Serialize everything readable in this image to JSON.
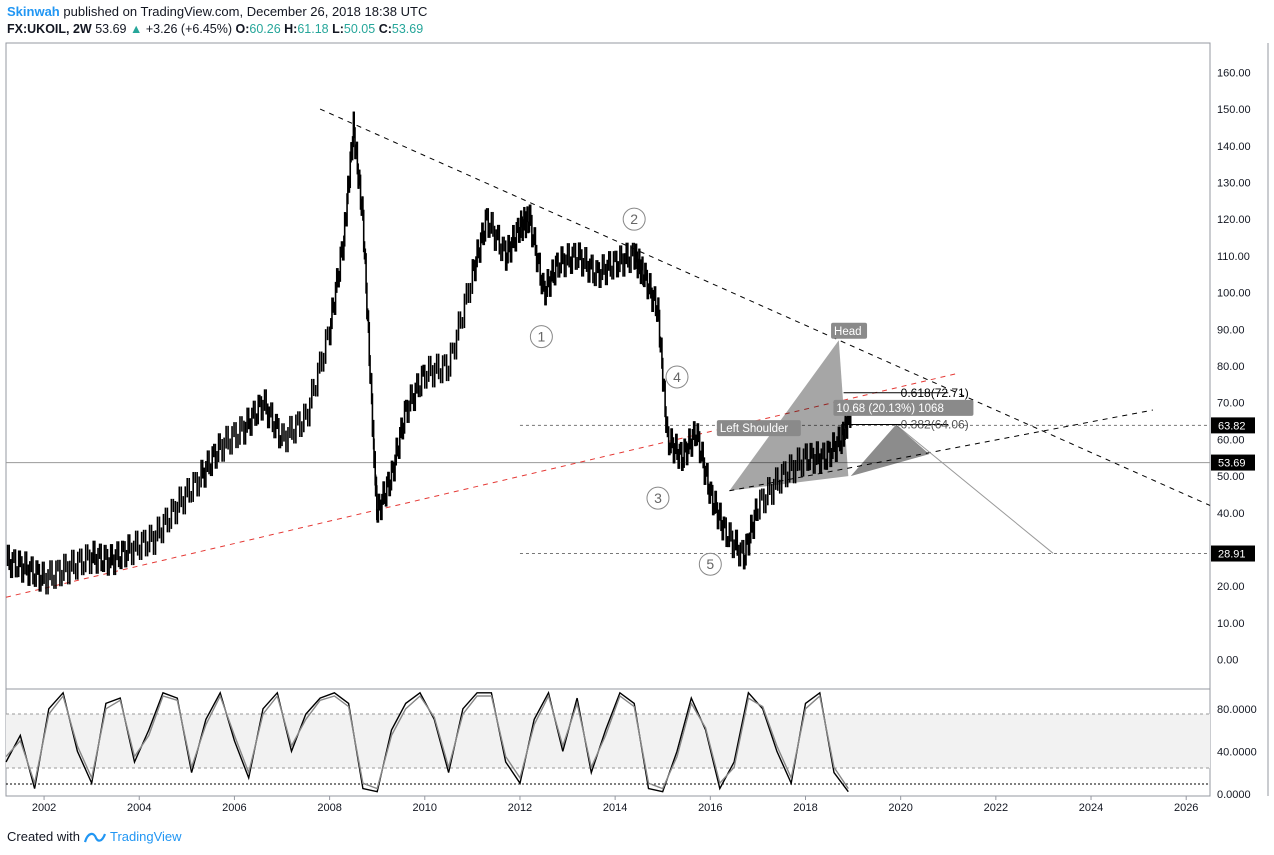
{
  "header": {
    "author": "Skinwah",
    "published": "published on TradingView.com, December 26, 2018 18:38 UTC",
    "symbol": "FX:UKOIL, 2W",
    "last": "53.69",
    "change": "+3.26 (+6.45%)",
    "o_label": "O:",
    "o": "60.26",
    "h_label": "H:",
    "h": "61.18",
    "l_label": "L:",
    "l": "50.05",
    "c_label": "C:",
    "c": "53.69"
  },
  "footer": {
    "created_with": "Created with",
    "brand": "TradingView"
  },
  "colors": {
    "up": "#26a69a",
    "brand": "#2196f3",
    "candle": "#000000",
    "trend_red": "#e53935"
  },
  "chart_data": [
    {
      "type": "candlestick",
      "title": "",
      "ylim": [
        -8,
        168
      ],
      "xlim": [
        2001.2,
        2026.5
      ],
      "y_ticks": [
        "160.00",
        "150.00",
        "140.00",
        "130.00",
        "120.00",
        "110.00",
        "100.00",
        "90.00",
        "80.00",
        "70.00",
        "60.00",
        "50.00",
        "40.00",
        "30.00",
        "20.00",
        "10.00",
        "0.00"
      ],
      "x_ticks": [
        "2002",
        "2004",
        "2006",
        "2008",
        "2010",
        "2012",
        "2014",
        "2016",
        "2018",
        "2020",
        "2022",
        "2024",
        "2026"
      ],
      "series": [
        {
          "x": [
            2001.2,
            2001.6,
            2002.0,
            2002.5,
            2003.0,
            2003.4,
            2003.8,
            2004.3,
            2004.8,
            2005.3,
            2005.7,
            2006.2,
            2006.6,
            2007.0,
            2007.5,
            2008.0,
            2008.3,
            2008.5,
            2008.7,
            2008.9,
            2009.0,
            2009.3,
            2009.6,
            2010.0,
            2010.5,
            2011.0,
            2011.3,
            2011.7,
            2012.0,
            2012.2,
            2012.5,
            2012.8,
            2013.2,
            2013.6,
            2014.0,
            2014.4,
            2014.6,
            2014.9,
            2015.1,
            2015.4,
            2015.7,
            2016.0,
            2016.3,
            2016.7,
            2017.0,
            2017.5,
            2018.0,
            2018.4,
            2018.75,
            2018.95
          ],
          "y": [
            27,
            25,
            22,
            25,
            28,
            27,
            30,
            33,
            42,
            50,
            58,
            63,
            70,
            60,
            66,
            90,
            115,
            145,
            120,
            65,
            40,
            50,
            68,
            78,
            80,
            105,
            120,
            110,
            118,
            120,
            100,
            108,
            110,
            105,
            108,
            110,
            105,
            95,
            60,
            55,
            62,
            45,
            35,
            28,
            42,
            50,
            55,
            55,
            60,
            68
          ],
          "name": ""
        }
      ],
      "price_labels": [
        "63.82",
        "53.69",
        "28.91"
      ],
      "annotations": {
        "head": "Head",
        "left_shoulder": "Left Shoulder",
        "fib_618": "0.618(72.71)",
        "fib_382": "0.382(64.06)",
        "measure": "10.68 (20.13%) 1068",
        "waves": [
          "1",
          "2",
          "3",
          "4",
          "5"
        ]
      }
    },
    {
      "type": "line",
      "title": "",
      "ylim": [
        -2,
        92
      ],
      "y_ticks": [
        "80.0000",
        "40.0000",
        "0.0000"
      ],
      "x": [
        2001.2,
        2001.5,
        2001.8,
        2002.1,
        2002.4,
        2002.7,
        2003.0,
        2003.3,
        2003.6,
        2003.9,
        2004.2,
        2004.5,
        2004.8,
        2005.1,
        2005.4,
        2005.7,
        2006.0,
        2006.3,
        2006.6,
        2006.9,
        2007.2,
        2007.5,
        2007.8,
        2008.1,
        2008.4,
        2008.7,
        2009.0,
        2009.3,
        2009.6,
        2009.9,
        2010.2,
        2010.5,
        2010.8,
        2011.1,
        2011.4,
        2011.7,
        2012.0,
        2012.3,
        2012.6,
        2012.9,
        2013.2,
        2013.5,
        2013.8,
        2014.1,
        2014.4,
        2014.7,
        2015.0,
        2015.3,
        2015.6,
        2015.9,
        2016.2,
        2016.5,
        2016.8,
        2017.1,
        2017.4,
        2017.7,
        2018.0,
        2018.3,
        2018.6,
        2018.9
      ],
      "series": [
        {
          "name": "",
          "values": [
            30,
            55,
            5,
            80,
            95,
            40,
            10,
            85,
            90,
            30,
            60,
            95,
            90,
            20,
            70,
            95,
            50,
            15,
            80,
            95,
            40,
            75,
            90,
            95,
            85,
            5,
            2,
            60,
            85,
            95,
            70,
            20,
            80,
            95,
            95,
            30,
            10,
            70,
            95,
            40,
            90,
            20,
            60,
            95,
            85,
            5,
            2,
            40,
            90,
            60,
            5,
            30,
            95,
            80,
            40,
            10,
            85,
            95,
            20,
            2
          ]
        },
        {
          "name": "",
          "values": [
            35,
            50,
            10,
            75,
            92,
            45,
            15,
            80,
            88,
            35,
            55,
            92,
            88,
            25,
            65,
            92,
            55,
            20,
            75,
            92,
            45,
            70,
            88,
            92,
            82,
            10,
            5,
            55,
            80,
            92,
            72,
            25,
            75,
            92,
            92,
            35,
            15,
            65,
            92,
            45,
            85,
            25,
            55,
            92,
            82,
            10,
            5,
            35,
            85,
            62,
            10,
            25,
            90,
            82,
            45,
            15,
            80,
            92,
            25,
            5
          ]
        }
      ]
    }
  ]
}
